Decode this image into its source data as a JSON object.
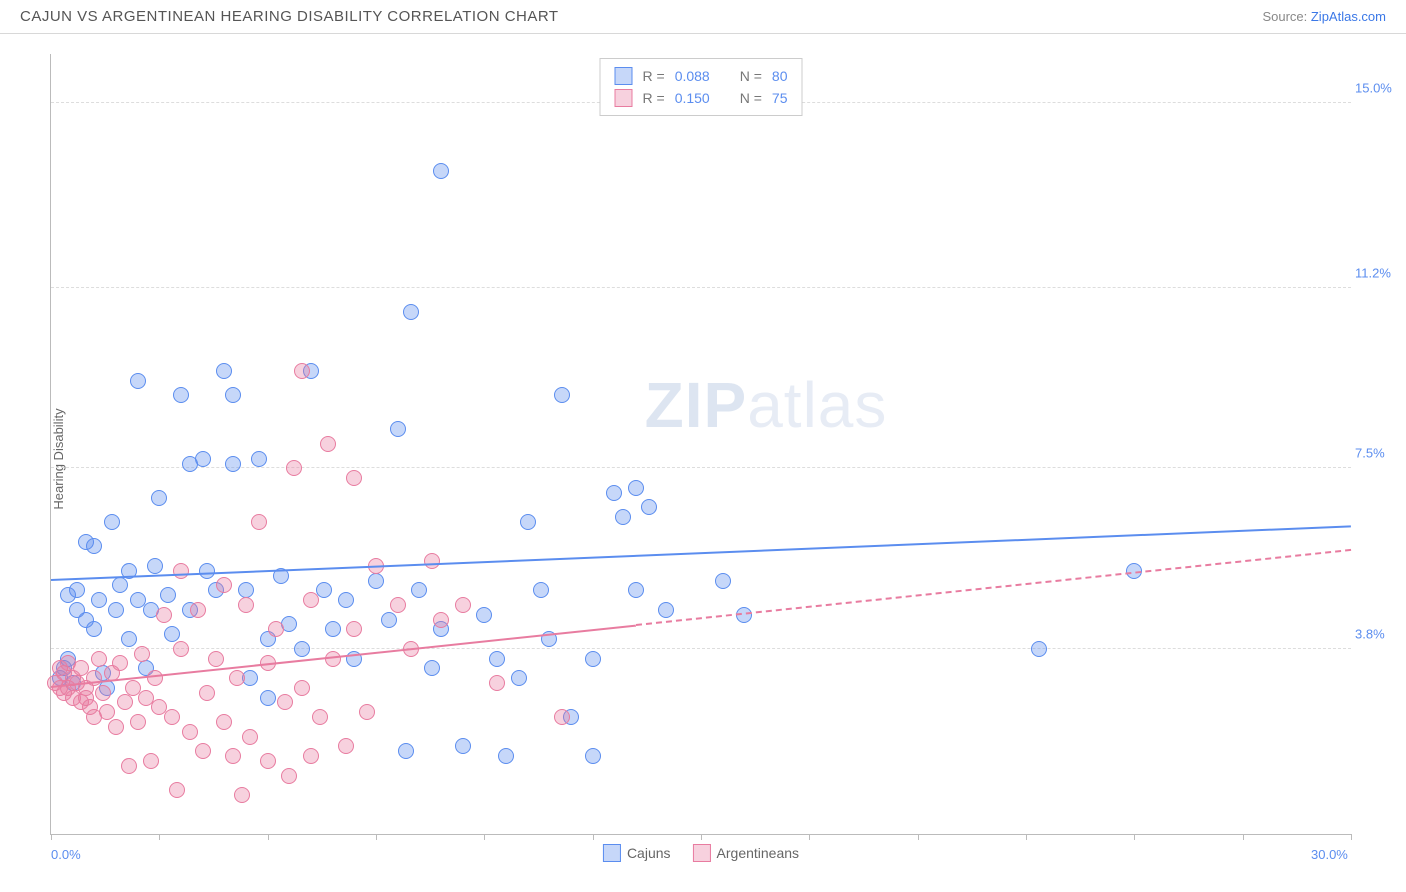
{
  "header": {
    "title": "CAJUN VS ARGENTINEAN HEARING DISABILITY CORRELATION CHART",
    "source_label": "Source: ",
    "source_name": "ZipAtlas.com"
  },
  "ylabel": "Hearing Disability",
  "watermark": {
    "bold": "ZIP",
    "light": "atlas"
  },
  "chart": {
    "type": "scatter",
    "xlim": [
      0.0,
      30.0
    ],
    "ylim": [
      0.0,
      16.0
    ],
    "x_tick_interval": 2.5,
    "x_labels": {
      "min": "0.0%",
      "max": "30.0%"
    },
    "y_gridlines": [
      {
        "v": 3.8,
        "label": "3.8%"
      },
      {
        "v": 7.5,
        "label": "7.5%"
      },
      {
        "v": 11.2,
        "label": "11.2%"
      },
      {
        "v": 15.0,
        "label": "15.0%"
      }
    ],
    "grid_color": "#dddddd",
    "background_color": "#ffffff",
    "marker_radius": 8,
    "marker_opacity": 0.55,
    "series": [
      {
        "name": "Cajuns",
        "color": "#5b8def",
        "fill": "rgba(91,141,239,0.35)",
        "R": "0.088",
        "N": "80",
        "trend": {
          "y_at_x0": 5.2,
          "y_at_xmax": 6.3,
          "data_xmax": 30.0,
          "width": 2.5
        },
        "points": [
          [
            0.2,
            3.2
          ],
          [
            0.3,
            3.4
          ],
          [
            0.4,
            3.6
          ],
          [
            0.4,
            4.9
          ],
          [
            0.5,
            3.1
          ],
          [
            0.6,
            4.6
          ],
          [
            0.6,
            5.0
          ],
          [
            0.8,
            6.0
          ],
          [
            0.8,
            4.4
          ],
          [
            1.0,
            5.9
          ],
          [
            1.0,
            4.2
          ],
          [
            1.1,
            4.8
          ],
          [
            1.2,
            3.3
          ],
          [
            1.4,
            6.4
          ],
          [
            1.5,
            4.6
          ],
          [
            1.6,
            5.1
          ],
          [
            1.8,
            4.0
          ],
          [
            1.8,
            5.4
          ],
          [
            2.0,
            4.8
          ],
          [
            2.0,
            9.3
          ],
          [
            2.2,
            3.4
          ],
          [
            2.3,
            4.6
          ],
          [
            2.4,
            5.5
          ],
          [
            2.5,
            6.9
          ],
          [
            2.8,
            4.1
          ],
          [
            3.0,
            9.0
          ],
          [
            3.2,
            4.6
          ],
          [
            3.2,
            7.6
          ],
          [
            3.5,
            7.7
          ],
          [
            3.6,
            5.4
          ],
          [
            3.8,
            5.0
          ],
          [
            4.0,
            9.5
          ],
          [
            4.2,
            7.6
          ],
          [
            4.2,
            9.0
          ],
          [
            4.5,
            5.0
          ],
          [
            4.6,
            3.2
          ],
          [
            4.8,
            7.7
          ],
          [
            5.0,
            4.0
          ],
          [
            5.0,
            2.8
          ],
          [
            5.3,
            5.3
          ],
          [
            5.5,
            4.3
          ],
          [
            5.8,
            3.8
          ],
          [
            6.0,
            9.5
          ],
          [
            6.3,
            5.0
          ],
          [
            6.5,
            4.2
          ],
          [
            7.0,
            3.6
          ],
          [
            7.5,
            5.2
          ],
          [
            7.8,
            4.4
          ],
          [
            8.0,
            8.3
          ],
          [
            8.2,
            1.7
          ],
          [
            8.3,
            10.7
          ],
          [
            8.5,
            5.0
          ],
          [
            8.8,
            3.4
          ],
          [
            9.0,
            4.2
          ],
          [
            9.0,
            13.6
          ],
          [
            9.5,
            1.8
          ],
          [
            10.0,
            4.5
          ],
          [
            10.3,
            3.6
          ],
          [
            10.5,
            1.6
          ],
          [
            10.8,
            3.2
          ],
          [
            11.0,
            6.4
          ],
          [
            11.3,
            5.0
          ],
          [
            11.5,
            4.0
          ],
          [
            11.8,
            9.0
          ],
          [
            12.0,
            2.4
          ],
          [
            12.5,
            3.6
          ],
          [
            12.5,
            1.6
          ],
          [
            13.0,
            7.0
          ],
          [
            13.2,
            6.5
          ],
          [
            13.5,
            5.0
          ],
          [
            13.5,
            7.1
          ],
          [
            13.8,
            6.7
          ],
          [
            14.2,
            4.6
          ],
          [
            15.5,
            5.2
          ],
          [
            16.0,
            4.5
          ],
          [
            22.8,
            3.8
          ],
          [
            25.0,
            5.4
          ],
          [
            1.3,
            3.0
          ],
          [
            2.7,
            4.9
          ],
          [
            6.8,
            4.8
          ]
        ]
      },
      {
        "name": "Argentineans",
        "color": "#e87ca0",
        "fill": "rgba(232,124,160,0.35)",
        "R": "0.150",
        "N": "75",
        "trend": {
          "y_at_x0": 3.0,
          "y_at_xmax": 5.8,
          "data_xmax": 13.5,
          "width": 2
        },
        "points": [
          [
            0.1,
            3.1
          ],
          [
            0.2,
            3.0
          ],
          [
            0.2,
            3.4
          ],
          [
            0.3,
            2.9
          ],
          [
            0.3,
            3.3
          ],
          [
            0.4,
            3.0
          ],
          [
            0.4,
            3.5
          ],
          [
            0.5,
            2.8
          ],
          [
            0.5,
            3.2
          ],
          [
            0.6,
            3.1
          ],
          [
            0.7,
            2.7
          ],
          [
            0.7,
            3.4
          ],
          [
            0.8,
            2.8
          ],
          [
            0.8,
            3.0
          ],
          [
            0.9,
            2.6
          ],
          [
            1.0,
            3.2
          ],
          [
            1.0,
            2.4
          ],
          [
            1.1,
            3.6
          ],
          [
            1.2,
            2.9
          ],
          [
            1.3,
            2.5
          ],
          [
            1.4,
            3.3
          ],
          [
            1.5,
            2.2
          ],
          [
            1.6,
            3.5
          ],
          [
            1.7,
            2.7
          ],
          [
            1.8,
            1.4
          ],
          [
            1.9,
            3.0
          ],
          [
            2.0,
            2.3
          ],
          [
            2.1,
            3.7
          ],
          [
            2.2,
            2.8
          ],
          [
            2.3,
            1.5
          ],
          [
            2.4,
            3.2
          ],
          [
            2.5,
            2.6
          ],
          [
            2.6,
            4.5
          ],
          [
            2.8,
            2.4
          ],
          [
            2.9,
            0.9
          ],
          [
            3.0,
            3.8
          ],
          [
            3.0,
            5.4
          ],
          [
            3.2,
            2.1
          ],
          [
            3.4,
            4.6
          ],
          [
            3.5,
            1.7
          ],
          [
            3.6,
            2.9
          ],
          [
            3.8,
            3.6
          ],
          [
            4.0,
            2.3
          ],
          [
            4.0,
            5.1
          ],
          [
            4.2,
            1.6
          ],
          [
            4.3,
            3.2
          ],
          [
            4.5,
            4.7
          ],
          [
            4.6,
            2.0
          ],
          [
            4.8,
            6.4
          ],
          [
            5.0,
            1.5
          ],
          [
            5.0,
            3.5
          ],
          [
            5.2,
            4.2
          ],
          [
            5.4,
            2.7
          ],
          [
            5.5,
            1.2
          ],
          [
            5.6,
            7.5
          ],
          [
            5.8,
            3.0
          ],
          [
            5.8,
            9.5
          ],
          [
            6.0,
            1.6
          ],
          [
            6.0,
            4.8
          ],
          [
            6.2,
            2.4
          ],
          [
            6.4,
            8.0
          ],
          [
            6.5,
            3.6
          ],
          [
            6.8,
            1.8
          ],
          [
            7.0,
            4.2
          ],
          [
            7.0,
            7.3
          ],
          [
            7.3,
            2.5
          ],
          [
            7.5,
            5.5
          ],
          [
            8.0,
            4.7
          ],
          [
            8.3,
            3.8
          ],
          [
            8.8,
            5.6
          ],
          [
            9.0,
            4.4
          ],
          [
            9.5,
            4.7
          ],
          [
            10.3,
            3.1
          ],
          [
            11.8,
            2.4
          ],
          [
            4.4,
            0.8
          ]
        ]
      }
    ]
  },
  "legend": {
    "top": {
      "R_label": "R =",
      "N_label": "N ="
    },
    "bottom_labels": [
      "Cajuns",
      "Argentineans"
    ]
  }
}
